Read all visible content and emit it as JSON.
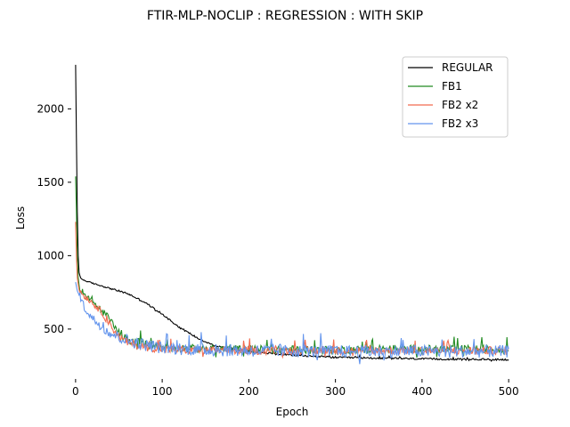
{
  "chart_data": {
    "type": "line",
    "title": "FTIR-MLP-NOCLIP : REGRESSION : WITH SKIP",
    "xlabel": "Epoch",
    "ylabel": "Loss",
    "xlim": [
      -5,
      505
    ],
    "ylim": [
      160,
      2390
    ],
    "xticks": [
      0,
      100,
      200,
      300,
      400,
      500
    ],
    "yticks": [
      500,
      1000,
      1500,
      2000
    ],
    "grid": false,
    "legend_position": "top-right",
    "series": [
      {
        "name": "REGULAR",
        "color": "#000000",
        "noise": 12,
        "points": [
          [
            0,
            2300
          ],
          [
            1,
            1800
          ],
          [
            2,
            1300
          ],
          [
            3,
            1000
          ],
          [
            4,
            880
          ],
          [
            6,
            845
          ],
          [
            10,
            830
          ],
          [
            20,
            810
          ],
          [
            40,
            775
          ],
          [
            60,
            740
          ],
          [
            80,
            680
          ],
          [
            100,
            600
          ],
          [
            120,
            510
          ],
          [
            140,
            440
          ],
          [
            160,
            385
          ],
          [
            200,
            345
          ],
          [
            250,
            320
          ],
          [
            300,
            305
          ],
          [
            350,
            300
          ],
          [
            400,
            295
          ],
          [
            450,
            292
          ],
          [
            500,
            290
          ]
        ]
      },
      {
        "name": "FB1",
        "color": "#228b22",
        "noise": 55,
        "points": [
          [
            0,
            1540
          ],
          [
            1,
            1300
          ],
          [
            2,
            1000
          ],
          [
            3,
            850
          ],
          [
            5,
            760
          ],
          [
            10,
            720
          ],
          [
            20,
            680
          ],
          [
            30,
            620
          ],
          [
            40,
            560
          ],
          [
            50,
            470
          ],
          [
            60,
            420
          ],
          [
            80,
            390
          ],
          [
            100,
            370
          ],
          [
            150,
            355
          ],
          [
            200,
            355
          ],
          [
            300,
            350
          ],
          [
            400,
            355
          ],
          [
            500,
            355
          ]
        ]
      },
      {
        "name": "FB2 x2",
        "color": "#f26b4f",
        "noise": 55,
        "points": [
          [
            0,
            1230
          ],
          [
            1,
            1000
          ],
          [
            2,
            850
          ],
          [
            4,
            760
          ],
          [
            10,
            720
          ],
          [
            20,
            670
          ],
          [
            30,
            610
          ],
          [
            40,
            520
          ],
          [
            50,
            440
          ],
          [
            60,
            400
          ],
          [
            80,
            370
          ],
          [
            100,
            355
          ],
          [
            150,
            345
          ],
          [
            200,
            345
          ],
          [
            300,
            345
          ],
          [
            400,
            345
          ],
          [
            500,
            345
          ]
        ]
      },
      {
        "name": "FB2 x3",
        "color": "#6495ed",
        "noise": 85,
        "points": [
          [
            0,
            820
          ],
          [
            2,
            760
          ],
          [
            5,
            720
          ],
          [
            10,
            640
          ],
          [
            20,
            560
          ],
          [
            30,
            510
          ],
          [
            40,
            460
          ],
          [
            60,
            410
          ],
          [
            80,
            380
          ],
          [
            100,
            360
          ],
          [
            150,
            345
          ],
          [
            200,
            340
          ],
          [
            300,
            335
          ],
          [
            400,
            335
          ],
          [
            500,
            335
          ]
        ]
      }
    ]
  }
}
